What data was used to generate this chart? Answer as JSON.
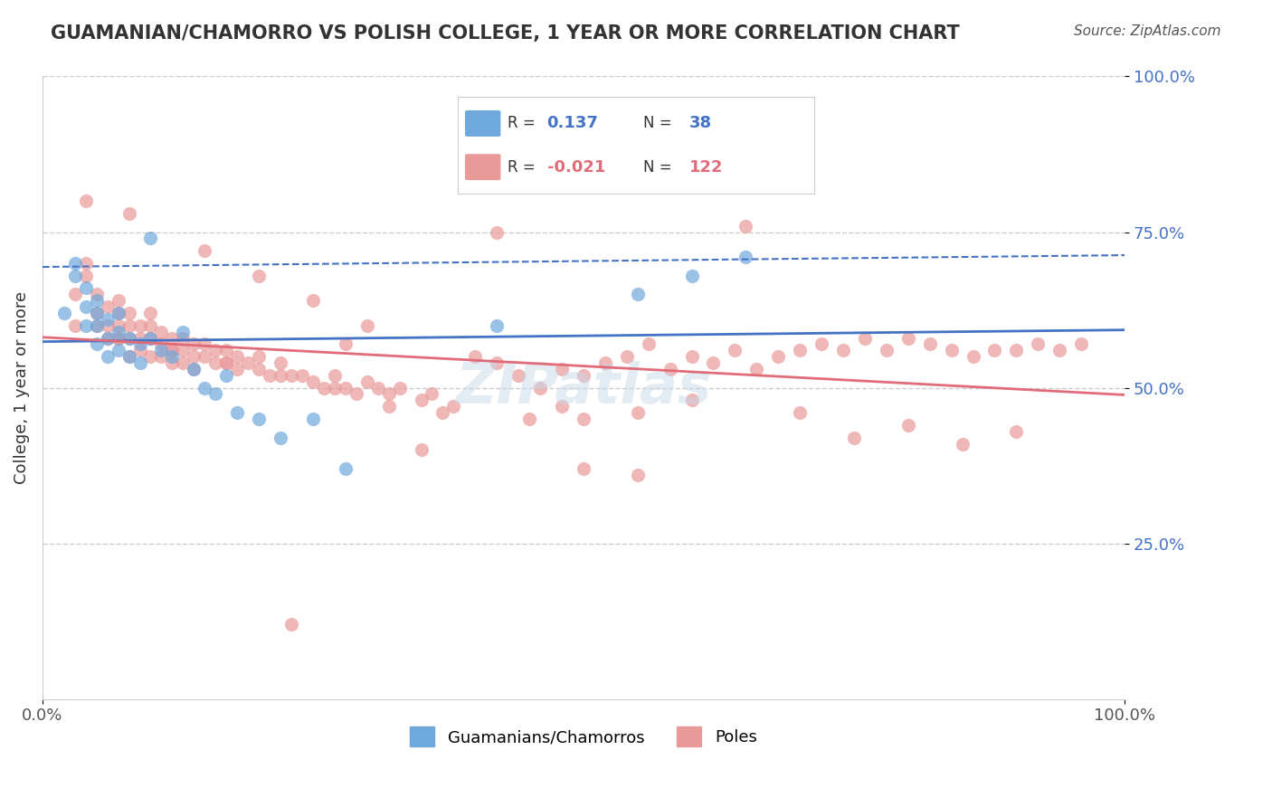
{
  "title": "GUAMANIAN/CHAMORRO VS POLISH COLLEGE, 1 YEAR OR MORE CORRELATION CHART",
  "source_text": "Source: ZipAtlas.com",
  "xlabel": "",
  "ylabel": "College, 1 year or more",
  "xlim": [
    0.0,
    1.0
  ],
  "ylim": [
    0.0,
    1.0
  ],
  "xticks": [
    0.0,
    0.25,
    0.5,
    0.75,
    1.0
  ],
  "xticklabels": [
    "0.0%",
    "",
    "",
    "",
    "100.0%"
  ],
  "yticks": [
    0.0,
    0.25,
    0.5,
    0.75,
    1.0
  ],
  "yticklabels": [
    "",
    "25.0%",
    "50.0%",
    "75.0%",
    "100.0%"
  ],
  "grid_color": "#cccccc",
  "background_color": "#ffffff",
  "blue_color": "#6fa8dc",
  "pink_color": "#ea9999",
  "blue_line_color": "#4472c4",
  "pink_line_color": "#e06c7a",
  "legend_r_blue": "0.137",
  "legend_n_blue": "38",
  "legend_r_pink": "-0.021",
  "legend_n_pink": "122",
  "legend_label_blue": "Guamanians/Chamorros",
  "legend_label_pink": "Poles",
  "blue_x": [
    0.02,
    0.03,
    0.03,
    0.04,
    0.04,
    0.04,
    0.05,
    0.05,
    0.05,
    0.05,
    0.06,
    0.06,
    0.06,
    0.07,
    0.07,
    0.07,
    0.08,
    0.08,
    0.09,
    0.09,
    0.1,
    0.1,
    0.11,
    0.12,
    0.13,
    0.14,
    0.15,
    0.16,
    0.17,
    0.18,
    0.2,
    0.22,
    0.25,
    0.28,
    0.42,
    0.55,
    0.6,
    0.65
  ],
  "blue_y": [
    0.62,
    0.68,
    0.7,
    0.6,
    0.63,
    0.66,
    0.57,
    0.6,
    0.62,
    0.64,
    0.55,
    0.58,
    0.61,
    0.56,
    0.59,
    0.62,
    0.55,
    0.58,
    0.54,
    0.57,
    0.74,
    0.58,
    0.56,
    0.55,
    0.59,
    0.53,
    0.5,
    0.49,
    0.52,
    0.46,
    0.45,
    0.42,
    0.45,
    0.37,
    0.6,
    0.65,
    0.68,
    0.71
  ],
  "pink_x": [
    0.03,
    0.04,
    0.04,
    0.05,
    0.05,
    0.05,
    0.06,
    0.06,
    0.06,
    0.07,
    0.07,
    0.07,
    0.07,
    0.08,
    0.08,
    0.08,
    0.08,
    0.09,
    0.09,
    0.09,
    0.1,
    0.1,
    0.1,
    0.1,
    0.11,
    0.11,
    0.11,
    0.12,
    0.12,
    0.12,
    0.13,
    0.13,
    0.13,
    0.14,
    0.14,
    0.14,
    0.15,
    0.15,
    0.16,
    0.16,
    0.17,
    0.17,
    0.18,
    0.18,
    0.19,
    0.2,
    0.2,
    0.21,
    0.22,
    0.23,
    0.24,
    0.25,
    0.26,
    0.27,
    0.28,
    0.29,
    0.3,
    0.31,
    0.32,
    0.33,
    0.35,
    0.36,
    0.38,
    0.4,
    0.42,
    0.44,
    0.46,
    0.48,
    0.5,
    0.52,
    0.54,
    0.56,
    0.58,
    0.6,
    0.62,
    0.64,
    0.66,
    0.68,
    0.7,
    0.72,
    0.74,
    0.76,
    0.78,
    0.8,
    0.82,
    0.84,
    0.86,
    0.88,
    0.9,
    0.92,
    0.94,
    0.96,
    0.04,
    0.08,
    0.15,
    0.2,
    0.25,
    0.3,
    0.42,
    0.65,
    0.5,
    0.55,
    0.6,
    0.7,
    0.75,
    0.8,
    0.85,
    0.9,
    0.55,
    0.5,
    0.03,
    0.07,
    0.12,
    0.17,
    0.22,
    0.27,
    0.32,
    0.37,
    0.48,
    0.45,
    0.35,
    0.23,
    0.28
  ],
  "pink_y": [
    0.65,
    0.7,
    0.68,
    0.62,
    0.65,
    0.6,
    0.6,
    0.63,
    0.58,
    0.6,
    0.62,
    0.64,
    0.58,
    0.6,
    0.62,
    0.58,
    0.55,
    0.58,
    0.6,
    0.56,
    0.58,
    0.6,
    0.55,
    0.62,
    0.57,
    0.59,
    0.55,
    0.56,
    0.58,
    0.54,
    0.56,
    0.58,
    0.54,
    0.55,
    0.57,
    0.53,
    0.55,
    0.57,
    0.54,
    0.56,
    0.54,
    0.56,
    0.53,
    0.55,
    0.54,
    0.53,
    0.55,
    0.52,
    0.54,
    0.52,
    0.52,
    0.51,
    0.5,
    0.52,
    0.5,
    0.49,
    0.51,
    0.5,
    0.49,
    0.5,
    0.48,
    0.49,
    0.47,
    0.55,
    0.54,
    0.52,
    0.5,
    0.53,
    0.52,
    0.54,
    0.55,
    0.57,
    0.53,
    0.55,
    0.54,
    0.56,
    0.53,
    0.55,
    0.56,
    0.57,
    0.56,
    0.58,
    0.56,
    0.58,
    0.57,
    0.56,
    0.55,
    0.56,
    0.56,
    0.57,
    0.56,
    0.57,
    0.8,
    0.78,
    0.72,
    0.68,
    0.64,
    0.6,
    0.75,
    0.76,
    0.45,
    0.46,
    0.48,
    0.46,
    0.42,
    0.44,
    0.41,
    0.43,
    0.36,
    0.37,
    0.6,
    0.58,
    0.56,
    0.54,
    0.52,
    0.5,
    0.47,
    0.46,
    0.47,
    0.45,
    0.4,
    0.12,
    0.57
  ]
}
